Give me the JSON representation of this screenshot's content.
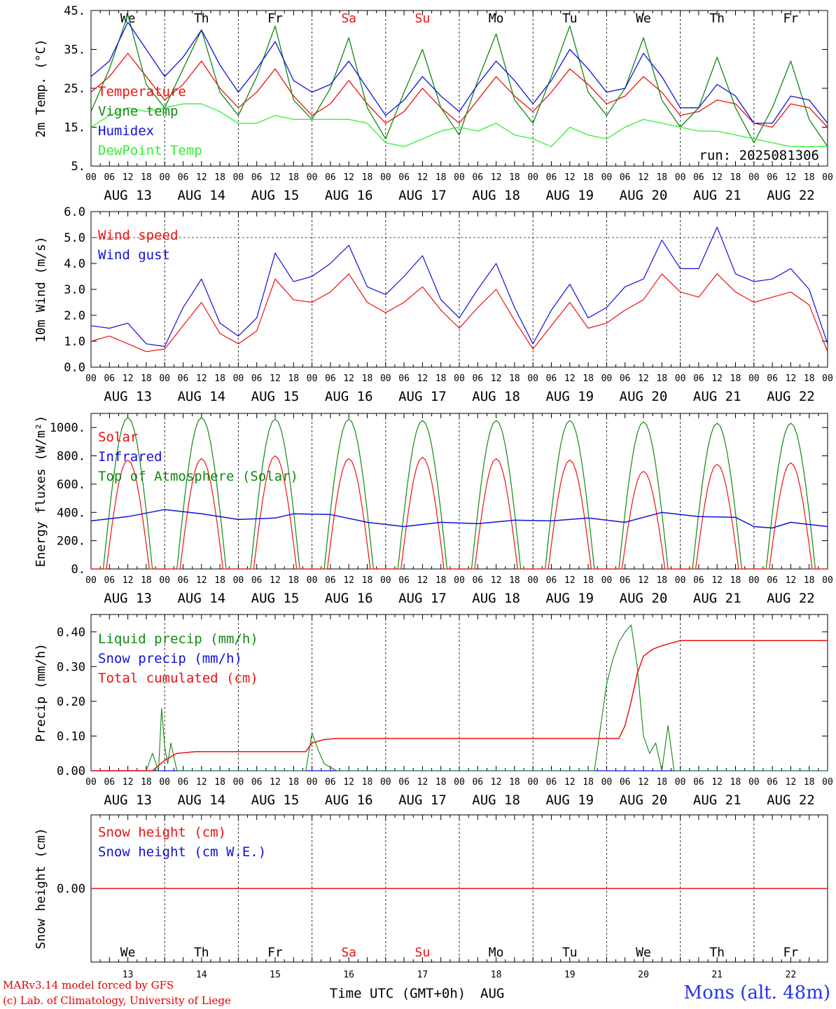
{
  "days": [
    {
      "weekday": "We",
      "date": "13",
      "month_label": "AUG 13",
      "weekend": false
    },
    {
      "weekday": "Th",
      "date": "14",
      "month_label": "AUG 14",
      "weekend": false
    },
    {
      "weekday": "Fr",
      "date": "15",
      "month_label": "AUG 15",
      "weekend": false
    },
    {
      "weekday": "Sa",
      "date": "16",
      "month_label": "AUG 16",
      "weekend": true
    },
    {
      "weekday": "Su",
      "date": "17",
      "month_label": "AUG 17",
      "weekend": true
    },
    {
      "weekday": "Mo",
      "date": "18",
      "month_label": "AUG 18",
      "weekend": false
    },
    {
      "weekday": "Tu",
      "date": "19",
      "month_label": "AUG 19",
      "weekend": false
    },
    {
      "weekday": "We",
      "date": "20",
      "month_label": "AUG 20",
      "weekend": false
    },
    {
      "weekday": "Th",
      "date": "21",
      "month_label": "AUG 21",
      "weekend": false
    },
    {
      "weekday": "Fr",
      "date": "22",
      "month_label": "AUG 22",
      "weekend": false
    }
  ],
  "hour_ticks": [
    "00",
    "06",
    "12",
    "18"
  ],
  "colors": {
    "red": "#ee1111",
    "green": "#118811",
    "blue": "#1111dd",
    "light_green": "#33ee33",
    "weekend": "#ee1111",
    "axis": "#000000"
  },
  "footer": {
    "model": "MARv3.14 model forced by GFS",
    "credit": "(c) Lab. of Climatology, University of Liege",
    "x_axis_label": "Time UTC (GMT+0h)",
    "month": "AUG",
    "location": "Mons (alt. 48m)"
  },
  "chart_data": [
    {
      "type": "line",
      "ylabel": "2m Temp. (°C)",
      "ylim": [
        5,
        45
      ],
      "yticks": [
        "5.",
        "15.",
        "25.",
        "35.",
        "45."
      ],
      "annotation": "run: 2025081306",
      "series": [
        {
          "name": "Temperature",
          "color": "#ee1111",
          "x_hours": [
            0,
            6,
            12,
            18,
            24,
            30,
            36,
            42,
            48,
            54,
            60,
            66,
            72,
            78,
            84,
            90,
            96,
            102,
            108,
            114,
            120,
            126,
            132,
            138,
            144,
            150,
            156,
            162,
            168,
            174,
            180,
            186,
            192,
            198,
            204,
            210,
            216,
            222,
            228,
            234,
            240
          ],
          "values": [
            24,
            28,
            34,
            28,
            22,
            26,
            32,
            25,
            20,
            24,
            30,
            23,
            18,
            21,
            27,
            21,
            16,
            19,
            25,
            20,
            16,
            22,
            28,
            23,
            19,
            24,
            30,
            26,
            21,
            23,
            28,
            24,
            18,
            19,
            22,
            21,
            16,
            15,
            21,
            20,
            15
          ]
        },
        {
          "name": "Vigne temp",
          "color": "#118811",
          "x_hours": [
            0,
            6,
            12,
            18,
            24,
            30,
            36,
            42,
            48,
            54,
            60,
            66,
            72,
            78,
            84,
            90,
            96,
            102,
            108,
            114,
            120,
            126,
            132,
            138,
            144,
            150,
            156,
            162,
            168,
            174,
            180,
            186,
            192,
            198,
            204,
            210,
            216,
            222,
            228,
            234,
            240
          ],
          "values": [
            19,
            30,
            44,
            26,
            20,
            30,
            40,
            24,
            18,
            28,
            41,
            22,
            17,
            25,
            38,
            20,
            12,
            24,
            35,
            20,
            13,
            27,
            39,
            22,
            16,
            28,
            41,
            24,
            18,
            25,
            38,
            22,
            15,
            20,
            33,
            20,
            11,
            20,
            32,
            17,
            10
          ]
        },
        {
          "name": "Humidex",
          "color": "#1111dd",
          "x_hours": [
            0,
            6,
            12,
            18,
            24,
            30,
            36,
            42,
            48,
            54,
            60,
            66,
            72,
            78,
            84,
            90,
            96,
            102,
            108,
            114,
            120,
            126,
            132,
            138,
            144,
            150,
            156,
            162,
            168,
            174,
            180,
            186,
            192,
            198,
            204,
            210,
            216,
            222,
            228,
            234,
            240
          ],
          "values": [
            28,
            32,
            42,
            35,
            28,
            33,
            40,
            31,
            24,
            30,
            37,
            27,
            24,
            26,
            32,
            25,
            18,
            22,
            28,
            23,
            19,
            26,
            32,
            27,
            21,
            27,
            35,
            30,
            24,
            25,
            34,
            28,
            20,
            20,
            26,
            23,
            16,
            16,
            23,
            22,
            16
          ]
        },
        {
          "name": "DewPoint Temp",
          "color": "#33ee33",
          "x_hours": [
            0,
            6,
            12,
            18,
            24,
            30,
            36,
            42,
            48,
            54,
            60,
            66,
            72,
            78,
            84,
            90,
            96,
            102,
            108,
            114,
            120,
            126,
            132,
            138,
            144,
            150,
            156,
            162,
            168,
            174,
            180,
            186,
            192,
            198,
            204,
            210,
            216,
            222,
            228,
            234,
            240
          ],
          "values": [
            15,
            18,
            20,
            19,
            20,
            21,
            21,
            19,
            16,
            16,
            18,
            17,
            17,
            17,
            17,
            16,
            11,
            10,
            12,
            14,
            15,
            14,
            16,
            13,
            12,
            10,
            15,
            13,
            12,
            15,
            17,
            16,
            15,
            14,
            14,
            13,
            12,
            11,
            10,
            10,
            10
          ]
        }
      ]
    },
    {
      "type": "line",
      "ylabel": "10m Wind (m/s)",
      "ylim": [
        0,
        6
      ],
      "yticks": [
        "0.0",
        "1.0",
        "2.0",
        "3.0",
        "4.0",
        "5.0",
        "6.0"
      ],
      "ref_line": 5,
      "series": [
        {
          "name": "Wind speed",
          "color": "#ee1111",
          "x_hours": [
            0,
            6,
            12,
            18,
            24,
            30,
            36,
            42,
            48,
            54,
            60,
            66,
            72,
            78,
            84,
            90,
            96,
            102,
            108,
            114,
            120,
            126,
            132,
            138,
            144,
            150,
            156,
            162,
            168,
            174,
            180,
            186,
            192,
            198,
            204,
            210,
            216,
            222,
            228,
            234,
            240
          ],
          "values": [
            1.0,
            1.2,
            0.9,
            0.6,
            0.7,
            1.6,
            2.5,
            1.3,
            0.9,
            1.4,
            3.4,
            2.6,
            2.5,
            2.9,
            3.6,
            2.5,
            2.1,
            2.5,
            3.1,
            2.2,
            1.5,
            2.3,
            3.0,
            1.8,
            0.7,
            1.6,
            2.5,
            1.5,
            1.7,
            2.2,
            2.6,
            3.6,
            2.9,
            2.7,
            3.6,
            2.9,
            2.5,
            2.7,
            2.9,
            2.4,
            0.6
          ]
        },
        {
          "name": "Wind gust",
          "color": "#1111dd",
          "x_hours": [
            0,
            6,
            12,
            18,
            24,
            30,
            36,
            42,
            48,
            54,
            60,
            66,
            72,
            78,
            84,
            90,
            96,
            102,
            108,
            114,
            120,
            126,
            132,
            138,
            144,
            150,
            156,
            162,
            168,
            174,
            180,
            186,
            192,
            198,
            204,
            210,
            216,
            222,
            228,
            234,
            240
          ],
          "values": [
            1.6,
            1.5,
            1.7,
            0.9,
            0.8,
            2.3,
            3.4,
            1.7,
            1.2,
            1.9,
            4.4,
            3.3,
            3.5,
            4.0,
            4.7,
            3.1,
            2.8,
            3.5,
            4.3,
            2.6,
            1.9,
            3.0,
            4.0,
            2.3,
            0.9,
            2.2,
            3.2,
            1.9,
            2.3,
            3.1,
            3.4,
            4.9,
            3.8,
            3.8,
            5.4,
            3.6,
            3.3,
            3.4,
            3.8,
            3.0,
            0.9
          ]
        }
      ]
    },
    {
      "type": "line",
      "ylabel": "Energy fluxes (W/m²)",
      "ylim": [
        0,
        1100
      ],
      "yticks": [
        "0.",
        "200.",
        "400.",
        "600.",
        "800.",
        "1000."
      ],
      "daily_peaks": {
        "solar": [
          770,
          780,
          800,
          780,
          790,
          780,
          770,
          690,
          740,
          750
        ],
        "toa": [
          1070,
          1070,
          1060,
          1060,
          1050,
          1050,
          1050,
          1040,
          1030,
          1030
        ]
      },
      "series": [
        {
          "name": "Solar",
          "color": "#ee1111"
        },
        {
          "name": "Infrared",
          "color": "#1111dd",
          "x_hours": [
            0,
            12,
            24,
            36,
            48,
            60,
            66,
            78,
            90,
            102,
            114,
            126,
            138,
            150,
            162,
            174,
            186,
            198,
            210,
            216,
            222,
            228,
            240
          ],
          "values": [
            340,
            370,
            420,
            390,
            350,
            360,
            390,
            385,
            330,
            300,
            330,
            320,
            345,
            340,
            360,
            330,
            400,
            370,
            365,
            300,
            290,
            330,
            300
          ]
        },
        {
          "name": "Top of Atmosphere (Solar)",
          "color": "#118811"
        }
      ]
    },
    {
      "type": "line",
      "ylabel": "Precip (mm/h)",
      "ylim": [
        0,
        0.45
      ],
      "yticks": [
        "0.00",
        "0.10",
        "0.20",
        "0.30",
        "0.40"
      ],
      "series": [
        {
          "name": "Liquid precip (mm/h)",
          "color": "#118811",
          "x_hours": [
            0,
            18,
            20,
            22,
            23,
            24,
            25,
            26,
            28,
            30,
            34,
            70,
            72,
            74,
            76,
            80,
            164,
            168,
            170,
            172,
            174,
            176,
            178,
            180,
            182,
            184,
            186,
            188,
            190,
            240
          ],
          "values": [
            0,
            0,
            0.05,
            0,
            0.18,
            0.07,
            0.02,
            0.08,
            0,
            0,
            0,
            0,
            0.11,
            0.06,
            0.02,
            0,
            0,
            0.25,
            0.32,
            0.37,
            0.4,
            0.42,
            0.3,
            0.1,
            0.05,
            0.08,
            0,
            0.13,
            0,
            0
          ]
        },
        {
          "name": "Snow precip (mm/h)",
          "color": "#1111dd"
        },
        {
          "name": "Total cumulated (cm)",
          "color": "#ee1111",
          "x_hours": [
            0,
            20,
            24,
            28,
            34,
            70,
            72,
            76,
            80,
            172,
            174,
            176,
            178,
            180,
            183,
            186,
            192,
            240
          ],
          "values": [
            0,
            0,
            0.03,
            0.05,
            0.055,
            0.055,
            0.08,
            0.09,
            0.093,
            0.093,
            0.13,
            0.2,
            0.28,
            0.33,
            0.35,
            0.36,
            0.375,
            0.375
          ]
        }
      ]
    },
    {
      "type": "line",
      "ylabel": "Snow height (cm)",
      "yticks": [
        "0.00"
      ],
      "series": [
        {
          "name": "Snow height (cm)",
          "color": "#ee1111",
          "x_hours": [
            0,
            240
          ],
          "values": [
            0,
            0
          ]
        },
        {
          "name": "Snow height (cm W.E.)",
          "color": "#1111dd"
        }
      ]
    }
  ]
}
